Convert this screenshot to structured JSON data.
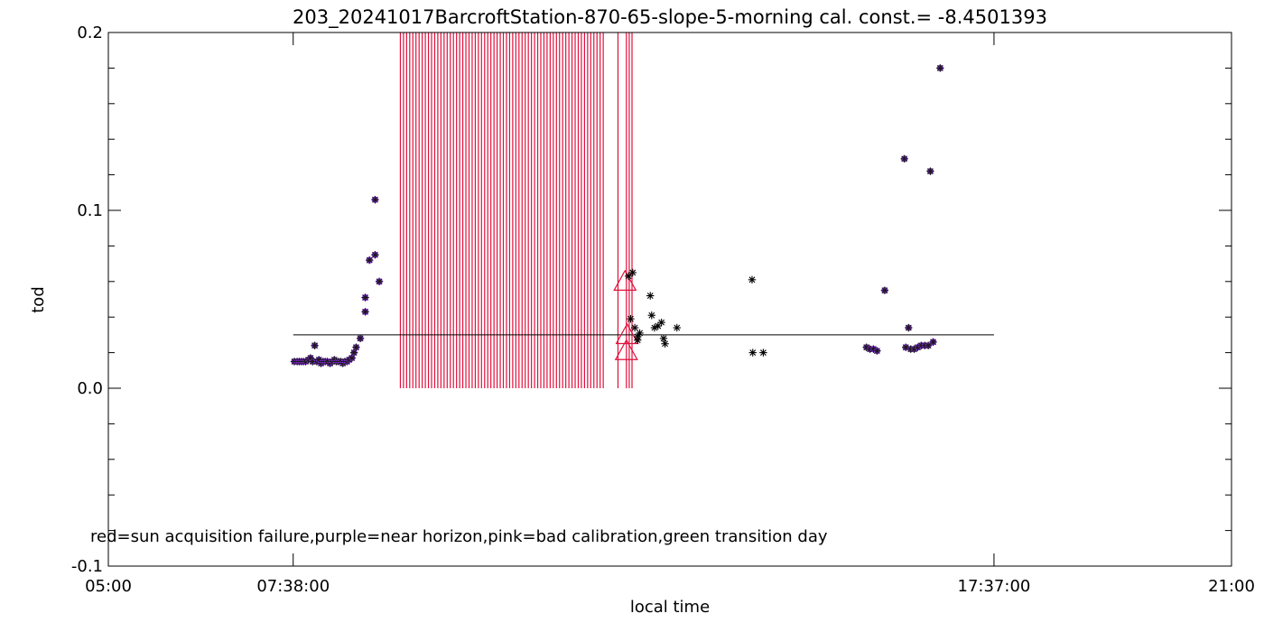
{
  "chart_data": {
    "type": "scatter",
    "title": "203_20241017BarcroftStation-870-65-slope-5-morning cal. const.= -8.4501393",
    "xlabel": "local time",
    "ylabel": "tod",
    "xlim": [
      5.0,
      21.0
    ],
    "ylim": [
      -0.1,
      0.2
    ],
    "x_ticks": [
      {
        "value": 5.0,
        "label": "05:00"
      },
      {
        "value": 7.6333,
        "label": "07:38:00"
      },
      {
        "value": 17.6167,
        "label": "17:37:00"
      },
      {
        "value": 21.0,
        "label": "21:00"
      }
    ],
    "y_ticks": [
      {
        "value": -0.1,
        "label": "-0.1"
      },
      {
        "value": 0.0,
        "label": "0.0"
      },
      {
        "value": 0.1,
        "label": "0.1"
      },
      {
        "value": 0.2,
        "label": "0.2"
      }
    ],
    "legend_note": "red=sun acquisition failure,purple=near horizon,pink=bad calibration,green transition day",
    "reference_line": {
      "y": 0.03,
      "x_start": 7.6333,
      "x_end": 17.6167
    },
    "colors": {
      "point_black": "#000000",
      "near_horizon": "#8a2be2",
      "sun_fail": "#e0103c",
      "axis": "#000000"
    },
    "sun_acquisition_failure_band": {
      "x_start": 9.16,
      "x_end": 12.05,
      "y_bottom": 0.0,
      "y_top": 0.2,
      "line_count": 66
    },
    "sun_acquisition_failure_lines": [
      {
        "x": 12.26,
        "y_bottom": 0.0,
        "y_top": 0.2
      },
      {
        "x": 12.38,
        "y_bottom": 0.0,
        "y_top": 0.2
      },
      {
        "x": 12.42,
        "y_bottom": 0.0,
        "y_top": 0.2
      },
      {
        "x": 12.46,
        "y_bottom": 0.0,
        "y_top": 0.2
      }
    ],
    "bad_calibration_triangles": [
      {
        "x": 12.36,
        "y": 0.06
      },
      {
        "x": 12.39,
        "y": 0.03
      },
      {
        "x": 12.38,
        "y": 0.021
      }
    ],
    "near_horizon_points": [
      {
        "x": 7.65,
        "y": 0.015
      },
      {
        "x": 7.69,
        "y": 0.015
      },
      {
        "x": 7.72,
        "y": 0.015
      },
      {
        "x": 7.75,
        "y": 0.015
      },
      {
        "x": 7.78,
        "y": 0.015
      },
      {
        "x": 7.81,
        "y": 0.015
      },
      {
        "x": 7.85,
        "y": 0.016
      },
      {
        "x": 7.88,
        "y": 0.017
      },
      {
        "x": 7.91,
        "y": 0.015
      },
      {
        "x": 7.94,
        "y": 0.024
      },
      {
        "x": 7.97,
        "y": 0.015
      },
      {
        "x": 8.0,
        "y": 0.016
      },
      {
        "x": 8.03,
        "y": 0.014
      },
      {
        "x": 8.06,
        "y": 0.015
      },
      {
        "x": 8.09,
        "y": 0.015
      },
      {
        "x": 8.12,
        "y": 0.015
      },
      {
        "x": 8.16,
        "y": 0.014
      },
      {
        "x": 8.19,
        "y": 0.015
      },
      {
        "x": 8.22,
        "y": 0.016
      },
      {
        "x": 8.25,
        "y": 0.015
      },
      {
        "x": 8.28,
        "y": 0.015
      },
      {
        "x": 8.31,
        "y": 0.015
      },
      {
        "x": 8.34,
        "y": 0.014
      },
      {
        "x": 8.37,
        "y": 0.015
      },
      {
        "x": 8.4,
        "y": 0.015
      },
      {
        "x": 8.43,
        "y": 0.016
      },
      {
        "x": 8.47,
        "y": 0.017
      },
      {
        "x": 8.5,
        "y": 0.02
      },
      {
        "x": 8.53,
        "y": 0.023
      },
      {
        "x": 8.59,
        "y": 0.028
      },
      {
        "x": 8.66,
        "y": 0.051
      },
      {
        "x": 8.66,
        "y": 0.043
      },
      {
        "x": 8.72,
        "y": 0.072
      },
      {
        "x": 8.8,
        "y": 0.075
      },
      {
        "x": 8.8,
        "y": 0.106
      },
      {
        "x": 8.86,
        "y": 0.06
      },
      {
        "x": 15.8,
        "y": 0.023
      },
      {
        "x": 15.85,
        "y": 0.022
      },
      {
        "x": 15.9,
        "y": 0.022
      },
      {
        "x": 15.95,
        "y": 0.021
      },
      {
        "x": 16.06,
        "y": 0.055
      },
      {
        "x": 16.34,
        "y": 0.129
      },
      {
        "x": 16.36,
        "y": 0.023
      },
      {
        "x": 16.4,
        "y": 0.034
      },
      {
        "x": 16.43,
        "y": 0.022
      },
      {
        "x": 16.48,
        "y": 0.022
      },
      {
        "x": 16.53,
        "y": 0.023
      },
      {
        "x": 16.58,
        "y": 0.024
      },
      {
        "x": 16.63,
        "y": 0.024
      },
      {
        "x": 16.68,
        "y": 0.024
      },
      {
        "x": 16.71,
        "y": 0.122
      },
      {
        "x": 16.75,
        "y": 0.026
      },
      {
        "x": 16.85,
        "y": 0.18
      }
    ],
    "regular_points": [
      {
        "x": 12.41,
        "y": 0.063
      },
      {
        "x": 12.47,
        "y": 0.065
      },
      {
        "x": 12.44,
        "y": 0.039
      },
      {
        "x": 12.5,
        "y": 0.034
      },
      {
        "x": 12.54,
        "y": 0.029
      },
      {
        "x": 12.57,
        "y": 0.031
      },
      {
        "x": 12.54,
        "y": 0.027
      },
      {
        "x": 12.72,
        "y": 0.052
      },
      {
        "x": 12.74,
        "y": 0.041
      },
      {
        "x": 12.78,
        "y": 0.034
      },
      {
        "x": 12.83,
        "y": 0.035
      },
      {
        "x": 12.88,
        "y": 0.037
      },
      {
        "x": 12.91,
        "y": 0.028
      },
      {
        "x": 12.93,
        "y": 0.025
      },
      {
        "x": 13.1,
        "y": 0.034
      },
      {
        "x": 14.17,
        "y": 0.061
      },
      {
        "x": 14.18,
        "y": 0.02
      },
      {
        "x": 14.33,
        "y": 0.02
      }
    ]
  }
}
